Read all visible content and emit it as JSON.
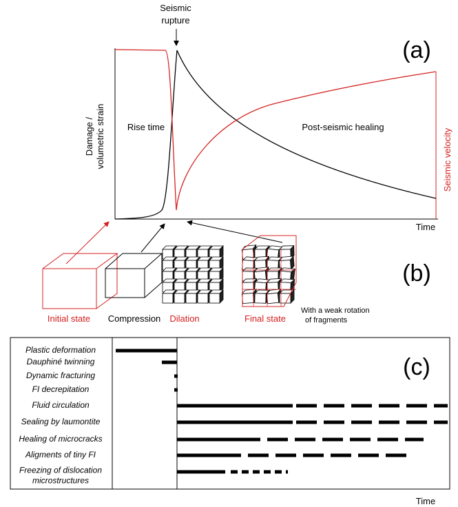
{
  "panel_a": {
    "label": "(a)",
    "rupture_label": [
      "Seismic",
      "rupture"
    ],
    "y_label": [
      "Damage /",
      "volumetric strain"
    ],
    "rise_time": "Rise time",
    "post_seismic": "Post-seismic healing",
    "y2_label": "Seismic velocity",
    "x_label": "Time"
  },
  "panel_b": {
    "label": "(b)",
    "states": [
      "Initial state",
      "Compression",
      "Dilation",
      "Final state"
    ],
    "note": [
      "With a weak rotation",
      "of fragments"
    ]
  },
  "panel_c": {
    "label": "(c)",
    "rows": [
      [
        "Plastic deformation"
      ],
      [
        "Dauphiné twinning"
      ],
      [
        "Dynamic fracturing"
      ],
      [
        "FI decrepitation"
      ],
      [
        "Fluid circulation"
      ],
      [
        "Sealing by laumontite"
      ],
      [
        "Healing of microcracks"
      ],
      [
        "Aligments of tiny FI"
      ],
      [
        "Freezing of dislocation",
        "microstructures"
      ]
    ],
    "x_label": "Time"
  }
}
